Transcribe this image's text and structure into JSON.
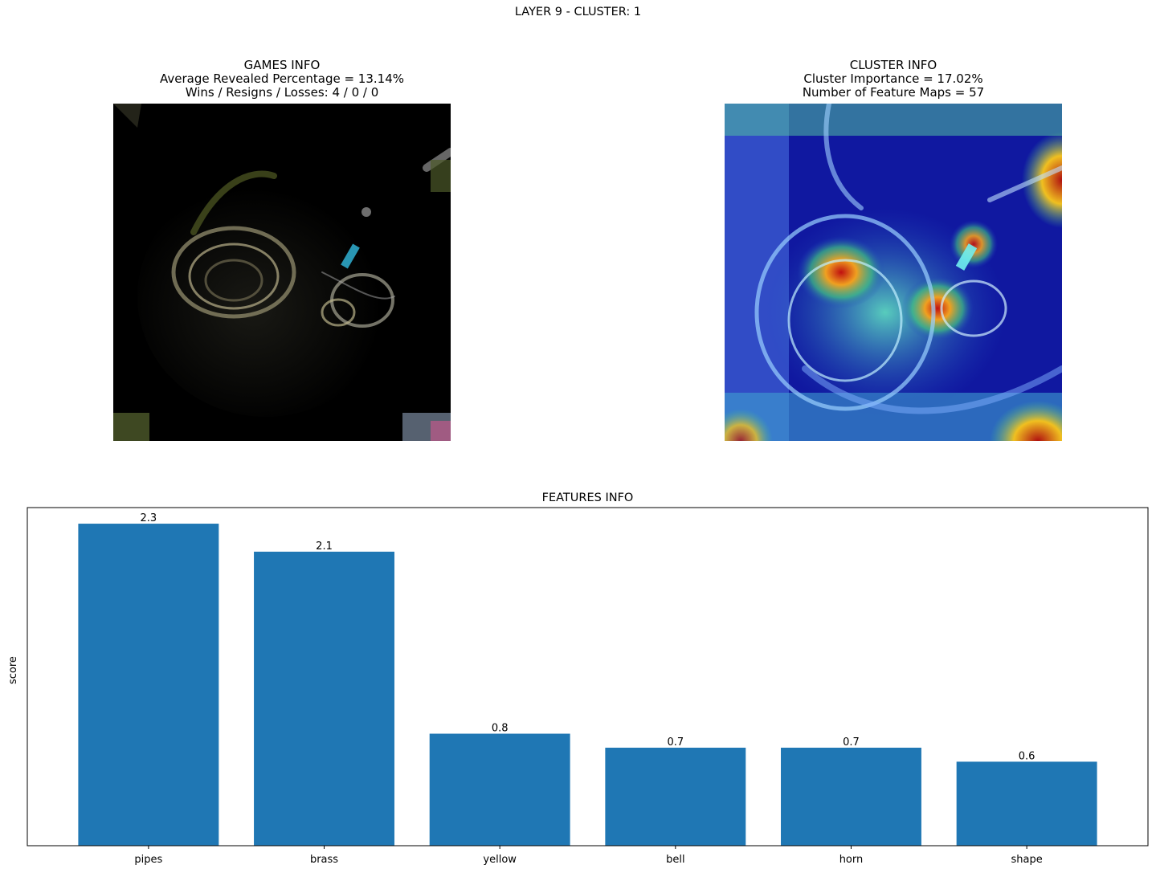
{
  "figure": {
    "suptitle": "LAYER 9 - CLUSTER: 1"
  },
  "games_info": {
    "title": "GAMES INFO",
    "line1": "Average Revealed Percentage = 13.14%",
    "line2": "Wins / Resigns / Losses: 4 / 0 / 0"
  },
  "cluster_info": {
    "title": "CLUSTER INFO",
    "line1": "Cluster Importance = 17.02%",
    "line2": "Number of Feature Maps = 57"
  },
  "images": {
    "left": "masked-french-horn-image",
    "right": "heatmap-overlay-french-horn-image"
  },
  "colors": {
    "bar": "#1f77b4",
    "axis": "#000000"
  },
  "chart_data": {
    "type": "bar",
    "title": "FEATURES INFO",
    "xlabel": "",
    "ylabel": "score",
    "categories": [
      "pipes",
      "brass",
      "yellow",
      "bell",
      "horn",
      "shape"
    ],
    "values": [
      2.3,
      2.1,
      0.8,
      0.7,
      0.7,
      0.6
    ],
    "data_labels": [
      "2.3",
      "2.1",
      "0.8",
      "0.7",
      "0.7",
      "0.6"
    ],
    "ylim": [
      0,
      2.415
    ],
    "yticks_visible": false,
    "grid": false,
    "legend": "none"
  }
}
